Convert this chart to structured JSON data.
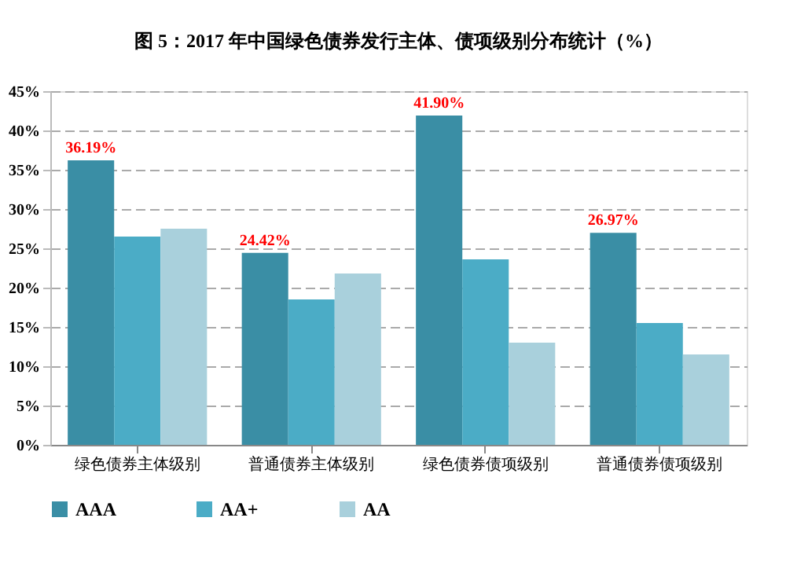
{
  "chart_data": {
    "type": "bar",
    "title": "图 5：2017 年中国绿色债券发行主体、债项级别分布统计（%）",
    "categories": [
      "绿色债券主体级别",
      "普通债券主体级别",
      "绿色债券债项级别",
      "普通债券债项级别"
    ],
    "series": [
      {
        "name": "AAA",
        "color": "#3a8ea5",
        "values": [
          36.19,
          24.42,
          41.9,
          26.97
        ],
        "value_labels": [
          "36.19%",
          "24.42%",
          "41.90%",
          "26.97%"
        ]
      },
      {
        "name": "AA+",
        "color": "#4bacc6",
        "values": [
          26.5,
          18.5,
          23.6,
          15.5
        ]
      },
      {
        "name": "AA",
        "color": "#a9d0dc",
        "values": [
          27.5,
          21.8,
          13,
          11.5
        ]
      }
    ],
    "ylim": [
      0,
      45
    ],
    "yticks": [
      {
        "value": 0,
        "label": "0%"
      },
      {
        "value": 5,
        "label": "5%"
      },
      {
        "value": 10,
        "label": "10%"
      },
      {
        "value": 15,
        "label": "15%"
      },
      {
        "value": 20,
        "label": "20%"
      },
      {
        "value": 25,
        "label": "25%"
      },
      {
        "value": 30,
        "label": "30%"
      },
      {
        "value": 35,
        "label": "35%"
      },
      {
        "value": 40,
        "label": "40%"
      },
      {
        "value": 45,
        "label": "45%"
      }
    ],
    "grid": "y",
    "legend": "bottom"
  }
}
